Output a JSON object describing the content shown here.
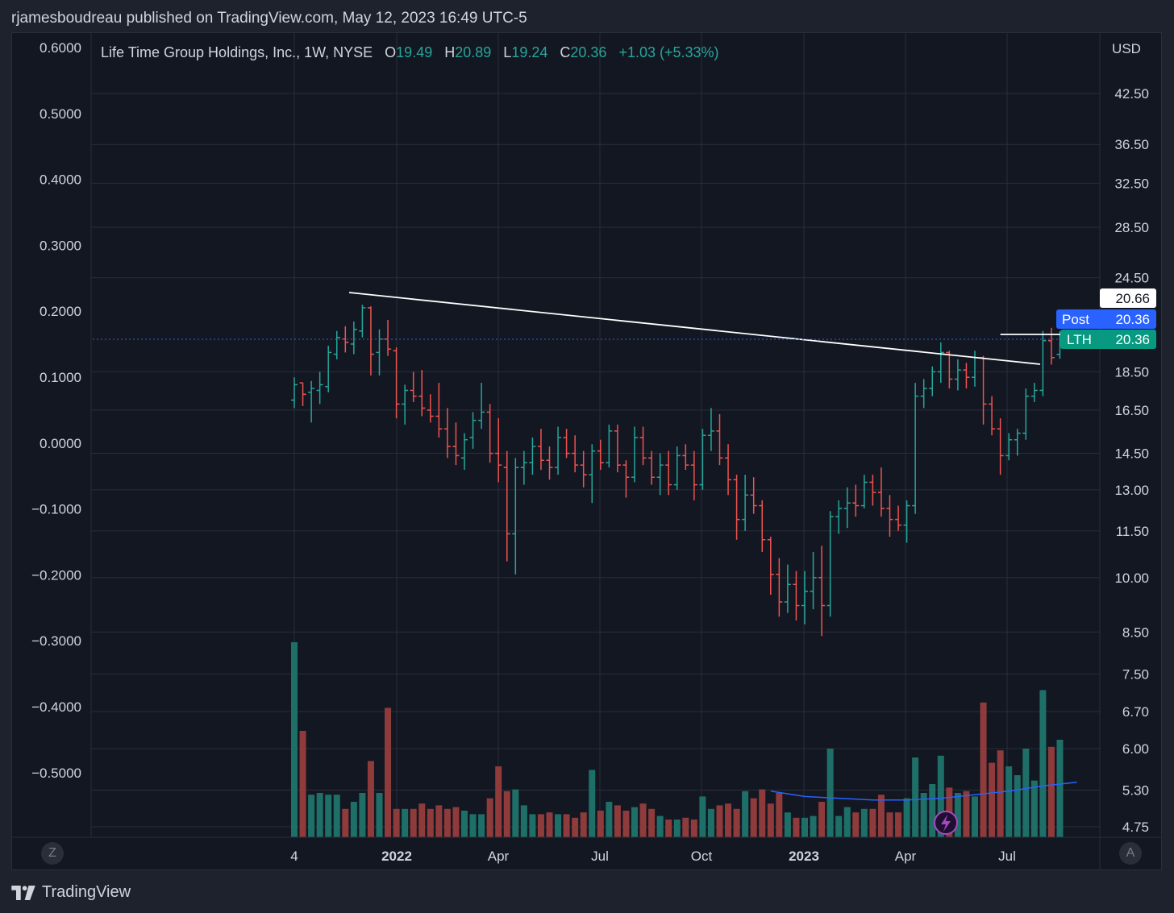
{
  "header": {
    "text": "rjamesboudreau published on TradingView.com, May 12, 2023 16:49 UTC-5"
  },
  "legend": {
    "symbol": "Life Time Group Holdings, Inc., 1W, NYSE",
    "o_label": "O",
    "o_value": "19.49",
    "h_label": "H",
    "h_value": "20.89",
    "l_label": "L",
    "l_value": "19.24",
    "c_label": "C",
    "c_value": "20.36",
    "change": "+1.03 (+5.33%)"
  },
  "colors": {
    "up": "#26a69a",
    "down": "#ef5350",
    "vol_up": "#1e6f68",
    "vol_down": "#8f3b3b",
    "ma": "#2962ff",
    "bg": "#131722",
    "grid": "#2a2e39",
    "trendline": "#ffffff"
  },
  "price_axis": {
    "currency": "USD",
    "ticks": [
      "42.50",
      "36.50",
      "32.50",
      "28.50",
      "24.50",
      "18.50",
      "16.50",
      "14.50",
      "13.00",
      "11.50",
      "10.00",
      "8.50",
      "7.50",
      "6.70",
      "6.00",
      "5.30",
      "4.75"
    ],
    "tick_values": [
      42.5,
      36.5,
      32.5,
      28.5,
      24.5,
      18.5,
      16.5,
      14.5,
      13.0,
      11.5,
      10.0,
      8.5,
      7.5,
      6.7,
      6.0,
      5.3,
      4.75
    ]
  },
  "left_axis": {
    "ticks": [
      "0.6000",
      "0.5000",
      "0.4000",
      "0.3000",
      "0.2000",
      "0.1000",
      "0.0000",
      "−0.1000",
      "−0.2000",
      "−0.3000",
      "−0.4000",
      "−0.5000"
    ]
  },
  "time_axis": {
    "labels": [
      "4",
      "2022",
      "Apr",
      "Jul",
      "Oct",
      "2023",
      "Apr",
      "Jul"
    ],
    "bold": [
      false,
      true,
      false,
      false,
      false,
      true,
      false,
      false
    ]
  },
  "price_tags": {
    "line": {
      "value": "20.66"
    },
    "post": {
      "label": "Post",
      "value": "20.36"
    },
    "last": {
      "label": "LTH",
      "value": "20.36"
    }
  },
  "buttons": {
    "left": "Z",
    "right": "A"
  },
  "footer": {
    "brand": "TradingView"
  },
  "chart_data": {
    "type": "ohlc",
    "title": "Life Time Group Holdings, Inc., 1W, NYSE",
    "interval": "1W",
    "scale": "log",
    "ylim": [
      4.5,
      50
    ],
    "volume_included": true,
    "trendlines": [
      {
        "from": {
          "bar": 3,
          "price": 21.0
        },
        "to": {
          "bar": 91,
          "price": 18.6
        }
      },
      {
        "from": {
          "bar": 83,
          "price": 19.1
        },
        "to": {
          "bar": 91,
          "price": 19.1
        }
      }
    ],
    "bars": [
      {
        "o": 17.0,
        "h": 18.2,
        "l": 16.6,
        "c": 17.8,
        "v": 11
      },
      {
        "o": 17.9,
        "h": 17.9,
        "l": 16.7,
        "c": 17.3,
        "v": 6
      },
      {
        "o": 17.4,
        "h": 18.0,
        "l": 15.9,
        "c": 17.6,
        "v": 2.4
      },
      {
        "o": 17.5,
        "h": 18.5,
        "l": 16.8,
        "c": 17.8,
        "v": 2.5
      },
      {
        "o": 17.7,
        "h": 20.0,
        "l": 17.4,
        "c": 19.6,
        "v": 2.4
      },
      {
        "o": 19.5,
        "h": 20.9,
        "l": 19.2,
        "c": 20.5,
        "v": 2.4
      },
      {
        "o": 20.4,
        "h": 21.2,
        "l": 19.6,
        "c": 20.2,
        "v": 1.6
      },
      {
        "o": 20.1,
        "h": 21.5,
        "l": 19.5,
        "c": 21.0,
        "v": 2.0
      },
      {
        "o": 20.9,
        "h": 22.6,
        "l": 20.5,
        "c": 22.4,
        "v": 2.5
      },
      {
        "o": 22.4,
        "h": 22.5,
        "l": 18.3,
        "c": 19.5,
        "v": 4.3
      },
      {
        "o": 19.6,
        "h": 21.0,
        "l": 18.3,
        "c": 20.4,
        "v": 2.5
      },
      {
        "o": 20.4,
        "h": 21.6,
        "l": 19.4,
        "c": 19.8,
        "v": 7.3
      },
      {
        "o": 19.7,
        "h": 19.9,
        "l": 16.1,
        "c": 16.8,
        "v": 1.6
      },
      {
        "o": 16.8,
        "h": 17.8,
        "l": 15.8,
        "c": 17.5,
        "v": 1.6
      },
      {
        "o": 17.5,
        "h": 18.5,
        "l": 16.9,
        "c": 17.2,
        "v": 1.6
      },
      {
        "o": 17.2,
        "h": 18.6,
        "l": 16.2,
        "c": 16.6,
        "v": 1.9
      },
      {
        "o": 16.5,
        "h": 17.3,
        "l": 15.9,
        "c": 16.2,
        "v": 1.6
      },
      {
        "o": 16.2,
        "h": 17.9,
        "l": 15.2,
        "c": 15.6,
        "v": 1.8
      },
      {
        "o": 15.6,
        "h": 16.6,
        "l": 14.3,
        "c": 14.8,
        "v": 1.6
      },
      {
        "o": 14.8,
        "h": 15.9,
        "l": 14.0,
        "c": 14.4,
        "v": 1.7
      },
      {
        "o": 14.3,
        "h": 15.4,
        "l": 13.8,
        "c": 15.1,
        "v": 1.5
      },
      {
        "o": 15.2,
        "h": 16.4,
        "l": 14.7,
        "c": 16.0,
        "v": 1.3
      },
      {
        "o": 16.0,
        "h": 17.9,
        "l": 15.6,
        "c": 16.4,
        "v": 1.3
      },
      {
        "o": 16.4,
        "h": 16.8,
        "l": 14.1,
        "c": 14.5,
        "v": 2.2
      },
      {
        "o": 14.5,
        "h": 16.1,
        "l": 13.3,
        "c": 14.0,
        "v": 4.0
      },
      {
        "o": 13.9,
        "h": 14.6,
        "l": 10.5,
        "c": 11.4,
        "v": 2.6
      },
      {
        "o": 11.4,
        "h": 14.3,
        "l": 10.1,
        "c": 13.9,
        "v": 2.7
      },
      {
        "o": 13.9,
        "h": 14.6,
        "l": 13.2,
        "c": 14.1,
        "v": 1.8
      },
      {
        "o": 14.1,
        "h": 15.2,
        "l": 13.6,
        "c": 14.8,
        "v": 1.3
      },
      {
        "o": 14.8,
        "h": 15.6,
        "l": 13.8,
        "c": 14.2,
        "v": 1.3
      },
      {
        "o": 14.2,
        "h": 14.8,
        "l": 13.4,
        "c": 13.9,
        "v": 1.4
      },
      {
        "o": 13.9,
        "h": 15.7,
        "l": 13.6,
        "c": 15.2,
        "v": 1.3
      },
      {
        "o": 15.2,
        "h": 15.6,
        "l": 14.3,
        "c": 14.5,
        "v": 1.3
      },
      {
        "o": 14.5,
        "h": 15.3,
        "l": 13.7,
        "c": 14.0,
        "v": 1.1
      },
      {
        "o": 14.0,
        "h": 14.6,
        "l": 13.1,
        "c": 13.6,
        "v": 1.4
      },
      {
        "o": 13.6,
        "h": 14.9,
        "l": 12.5,
        "c": 14.6,
        "v": 3.8
      },
      {
        "o": 14.6,
        "h": 15.1,
        "l": 13.8,
        "c": 14.1,
        "v": 1.5
      },
      {
        "o": 14.1,
        "h": 15.8,
        "l": 13.9,
        "c": 15.5,
        "v": 2.0
      },
      {
        "o": 15.5,
        "h": 15.8,
        "l": 13.7,
        "c": 14.0,
        "v": 1.8
      },
      {
        "o": 14.0,
        "h": 14.2,
        "l": 12.7,
        "c": 13.5,
        "v": 1.5
      },
      {
        "o": 13.5,
        "h": 15.7,
        "l": 13.3,
        "c": 15.2,
        "v": 1.7
      },
      {
        "o": 15.2,
        "h": 15.7,
        "l": 14.0,
        "c": 14.3,
        "v": 1.9
      },
      {
        "o": 14.3,
        "h": 14.6,
        "l": 13.2,
        "c": 13.5,
        "v": 1.6
      },
      {
        "o": 13.5,
        "h": 14.5,
        "l": 12.8,
        "c": 14.0,
        "v": 1.2
      },
      {
        "o": 14.0,
        "h": 14.6,
        "l": 12.8,
        "c": 13.2,
        "v": 1.0
      },
      {
        "o": 13.2,
        "h": 14.8,
        "l": 13.0,
        "c": 14.4,
        "v": 1.0
      },
      {
        "o": 14.4,
        "h": 14.9,
        "l": 13.8,
        "c": 14.0,
        "v": 1.1
      },
      {
        "o": 14.0,
        "h": 14.6,
        "l": 12.6,
        "c": 13.2,
        "v": 1.0
      },
      {
        "o": 13.2,
        "h": 15.6,
        "l": 13.0,
        "c": 15.3,
        "v": 2.3
      },
      {
        "o": 15.3,
        "h": 16.6,
        "l": 14.6,
        "c": 15.5,
        "v": 1.6
      },
      {
        "o": 15.5,
        "h": 16.3,
        "l": 14.0,
        "c": 14.3,
        "v": 1.8
      },
      {
        "o": 14.3,
        "h": 14.9,
        "l": 12.8,
        "c": 13.4,
        "v": 1.9
      },
      {
        "o": 13.4,
        "h": 13.6,
        "l": 11.2,
        "c": 11.9,
        "v": 1.6
      },
      {
        "o": 11.9,
        "h": 13.6,
        "l": 11.5,
        "c": 12.8,
        "v": 2.6
      },
      {
        "o": 12.8,
        "h": 13.5,
        "l": 12.1,
        "c": 12.4,
        "v": 2.2
      },
      {
        "o": 12.4,
        "h": 12.6,
        "l": 10.8,
        "c": 11.2,
        "v": 2.7
      },
      {
        "o": 11.2,
        "h": 11.3,
        "l": 9.5,
        "c": 10.1,
        "v": 1.9
      },
      {
        "o": 10.1,
        "h": 10.6,
        "l": 8.9,
        "c": 9.3,
        "v": 2.5
      },
      {
        "o": 9.3,
        "h": 10.4,
        "l": 9.0,
        "c": 9.8,
        "v": 1.4
      },
      {
        "o": 9.8,
        "h": 10.2,
        "l": 8.8,
        "c": 9.2,
        "v": 1.1
      },
      {
        "o": 9.2,
        "h": 10.2,
        "l": 8.7,
        "c": 9.6,
        "v": 1.1
      },
      {
        "o": 9.6,
        "h": 10.8,
        "l": 9.1,
        "c": 10.0,
        "v": 1.2
      },
      {
        "o": 10.0,
        "h": 11.0,
        "l": 8.4,
        "c": 9.2,
        "v": 2.0
      },
      {
        "o": 9.2,
        "h": 12.2,
        "l": 8.9,
        "c": 12.0,
        "v": 5.0
      },
      {
        "o": 12.0,
        "h": 12.6,
        "l": 11.4,
        "c": 12.3,
        "v": 1.2
      },
      {
        "o": 12.3,
        "h": 13.1,
        "l": 11.6,
        "c": 12.5,
        "v": 1.7
      },
      {
        "o": 12.5,
        "h": 13.2,
        "l": 12.0,
        "c": 12.4,
        "v": 1.4
      },
      {
        "o": 12.4,
        "h": 13.6,
        "l": 12.3,
        "c": 13.3,
        "v": 1.6
      },
      {
        "o": 13.3,
        "h": 13.6,
        "l": 12.4,
        "c": 12.9,
        "v": 1.6
      },
      {
        "o": 12.9,
        "h": 13.9,
        "l": 12.0,
        "c": 12.3,
        "v": 2.4
      },
      {
        "o": 12.3,
        "h": 12.8,
        "l": 11.3,
        "c": 11.9,
        "v": 1.4
      },
      {
        "o": 11.9,
        "h": 12.4,
        "l": 11.5,
        "c": 11.7,
        "v": 1.4
      },
      {
        "o": 11.7,
        "h": 12.6,
        "l": 11.1,
        "c": 12.4,
        "v": 2.2
      },
      {
        "o": 12.4,
        "h": 17.9,
        "l": 12.1,
        "c": 17.2,
        "v": 4.5
      },
      {
        "o": 17.2,
        "h": 18.1,
        "l": 16.6,
        "c": 17.6,
        "v": 2.5
      },
      {
        "o": 17.6,
        "h": 18.8,
        "l": 17.2,
        "c": 18.5,
        "v": 3.0
      },
      {
        "o": 18.5,
        "h": 20.2,
        "l": 17.9,
        "c": 19.6,
        "v": 4.6
      },
      {
        "o": 19.6,
        "h": 19.7,
        "l": 17.6,
        "c": 18.1,
        "v": 2.8
      },
      {
        "o": 18.1,
        "h": 19.2,
        "l": 17.5,
        "c": 18.6,
        "v": 2.5
      },
      {
        "o": 18.6,
        "h": 19.0,
        "l": 17.6,
        "c": 18.2,
        "v": 2.6
      },
      {
        "o": 18.2,
        "h": 19.7,
        "l": 17.7,
        "c": 19.3,
        "v": 2.3
      },
      {
        "o": 19.3,
        "h": 19.4,
        "l": 15.8,
        "c": 16.8,
        "v": 7.6
      },
      {
        "o": 16.8,
        "h": 17.2,
        "l": 15.3,
        "c": 15.6,
        "v": 4.2
      },
      {
        "o": 15.6,
        "h": 16.1,
        "l": 13.6,
        "c": 14.4,
        "v": 4.9
      },
      {
        "o": 14.4,
        "h": 15.4,
        "l": 14.2,
        "c": 15.1,
        "v": 4.0
      },
      {
        "o": 15.1,
        "h": 15.6,
        "l": 14.4,
        "c": 15.4,
        "v": 3.5
      },
      {
        "o": 15.4,
        "h": 17.6,
        "l": 15.1,
        "c": 17.2,
        "v": 5.0
      },
      {
        "o": 17.2,
        "h": 17.9,
        "l": 16.9,
        "c": 17.5,
        "v": 3.2
      },
      {
        "o": 17.5,
        "h": 20.9,
        "l": 17.2,
        "c": 20.3,
        "v": 8.3
      },
      {
        "o": 20.3,
        "h": 21.1,
        "l": 18.9,
        "c": 19.3,
        "v": 5.1
      },
      {
        "o": 19.49,
        "h": 20.89,
        "l": 19.24,
        "c": 20.36,
        "v": 5.5
      }
    ],
    "volume_ma": [
      {
        "bar": 56,
        "v": 2.6
      },
      {
        "bar": 60,
        "v": 2.3
      },
      {
        "bar": 64,
        "v": 2.2
      },
      {
        "bar": 68,
        "v": 2.1
      },
      {
        "bar": 72,
        "v": 2.1
      },
      {
        "bar": 76,
        "v": 2.2
      },
      {
        "bar": 80,
        "v": 2.4
      },
      {
        "bar": 84,
        "v": 2.6
      },
      {
        "bar": 88,
        "v": 2.9
      },
      {
        "bar": 92,
        "v": 3.1
      }
    ]
  }
}
